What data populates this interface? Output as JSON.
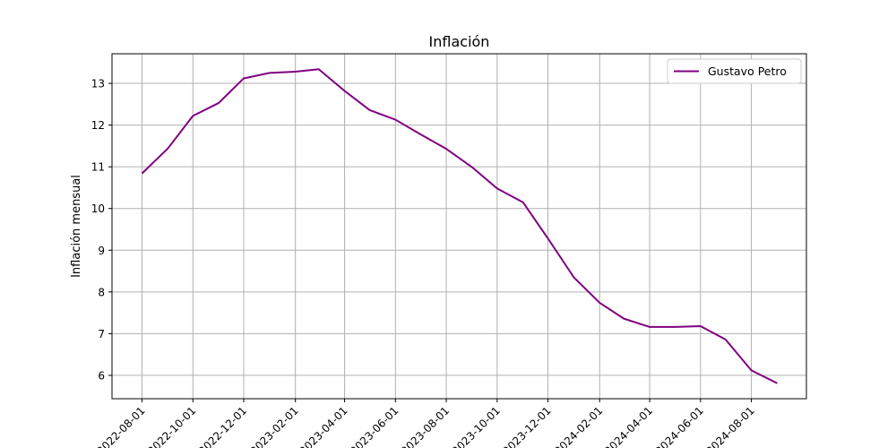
{
  "chart_data": {
    "type": "line",
    "title": "Inflación",
    "xlabel": "",
    "ylabel": "Inflación mensual",
    "grid": true,
    "legend_position": "top-right",
    "x": [
      "2022-08-01",
      "2022-09-01",
      "2022-10-01",
      "2022-11-01",
      "2022-12-01",
      "2023-01-01",
      "2023-02-01",
      "2023-03-01",
      "2023-04-01",
      "2023-05-01",
      "2023-06-01",
      "2023-07-01",
      "2023-08-01",
      "2023-09-01",
      "2023-10-01",
      "2023-11-01",
      "2023-12-01",
      "2024-01-01",
      "2024-02-01",
      "2024-03-01",
      "2024-04-01",
      "2024-05-01",
      "2024-06-01",
      "2024-07-01",
      "2024-08-01",
      "2024-09-01"
    ],
    "series": [
      {
        "name": "Gustavo Petro",
        "color": "#800080",
        "values": [
          10.84,
          11.44,
          12.22,
          12.53,
          13.12,
          13.25,
          13.28,
          13.34,
          12.82,
          12.36,
          12.13,
          11.78,
          11.43,
          10.99,
          10.48,
          10.15,
          9.28,
          8.35,
          7.74,
          7.36,
          7.16,
          7.16,
          7.18,
          6.86,
          6.12,
          5.81
        ]
      }
    ],
    "xticks": [
      "2022-08-01",
      "2022-10-01",
      "2022-12-01",
      "2023-02-01",
      "2023-04-01",
      "2023-06-01",
      "2023-08-01",
      "2023-10-01",
      "2023-12-01",
      "2024-02-01",
      "2024-04-01",
      "2024-06-01",
      "2024-08-01"
    ],
    "yticks": [
      6,
      7,
      8,
      9,
      10,
      11,
      12,
      13
    ],
    "ylim": [
      5.44,
      13.71
    ],
    "xlim": [
      "2022-06-26",
      "2024-10-06"
    ]
  }
}
